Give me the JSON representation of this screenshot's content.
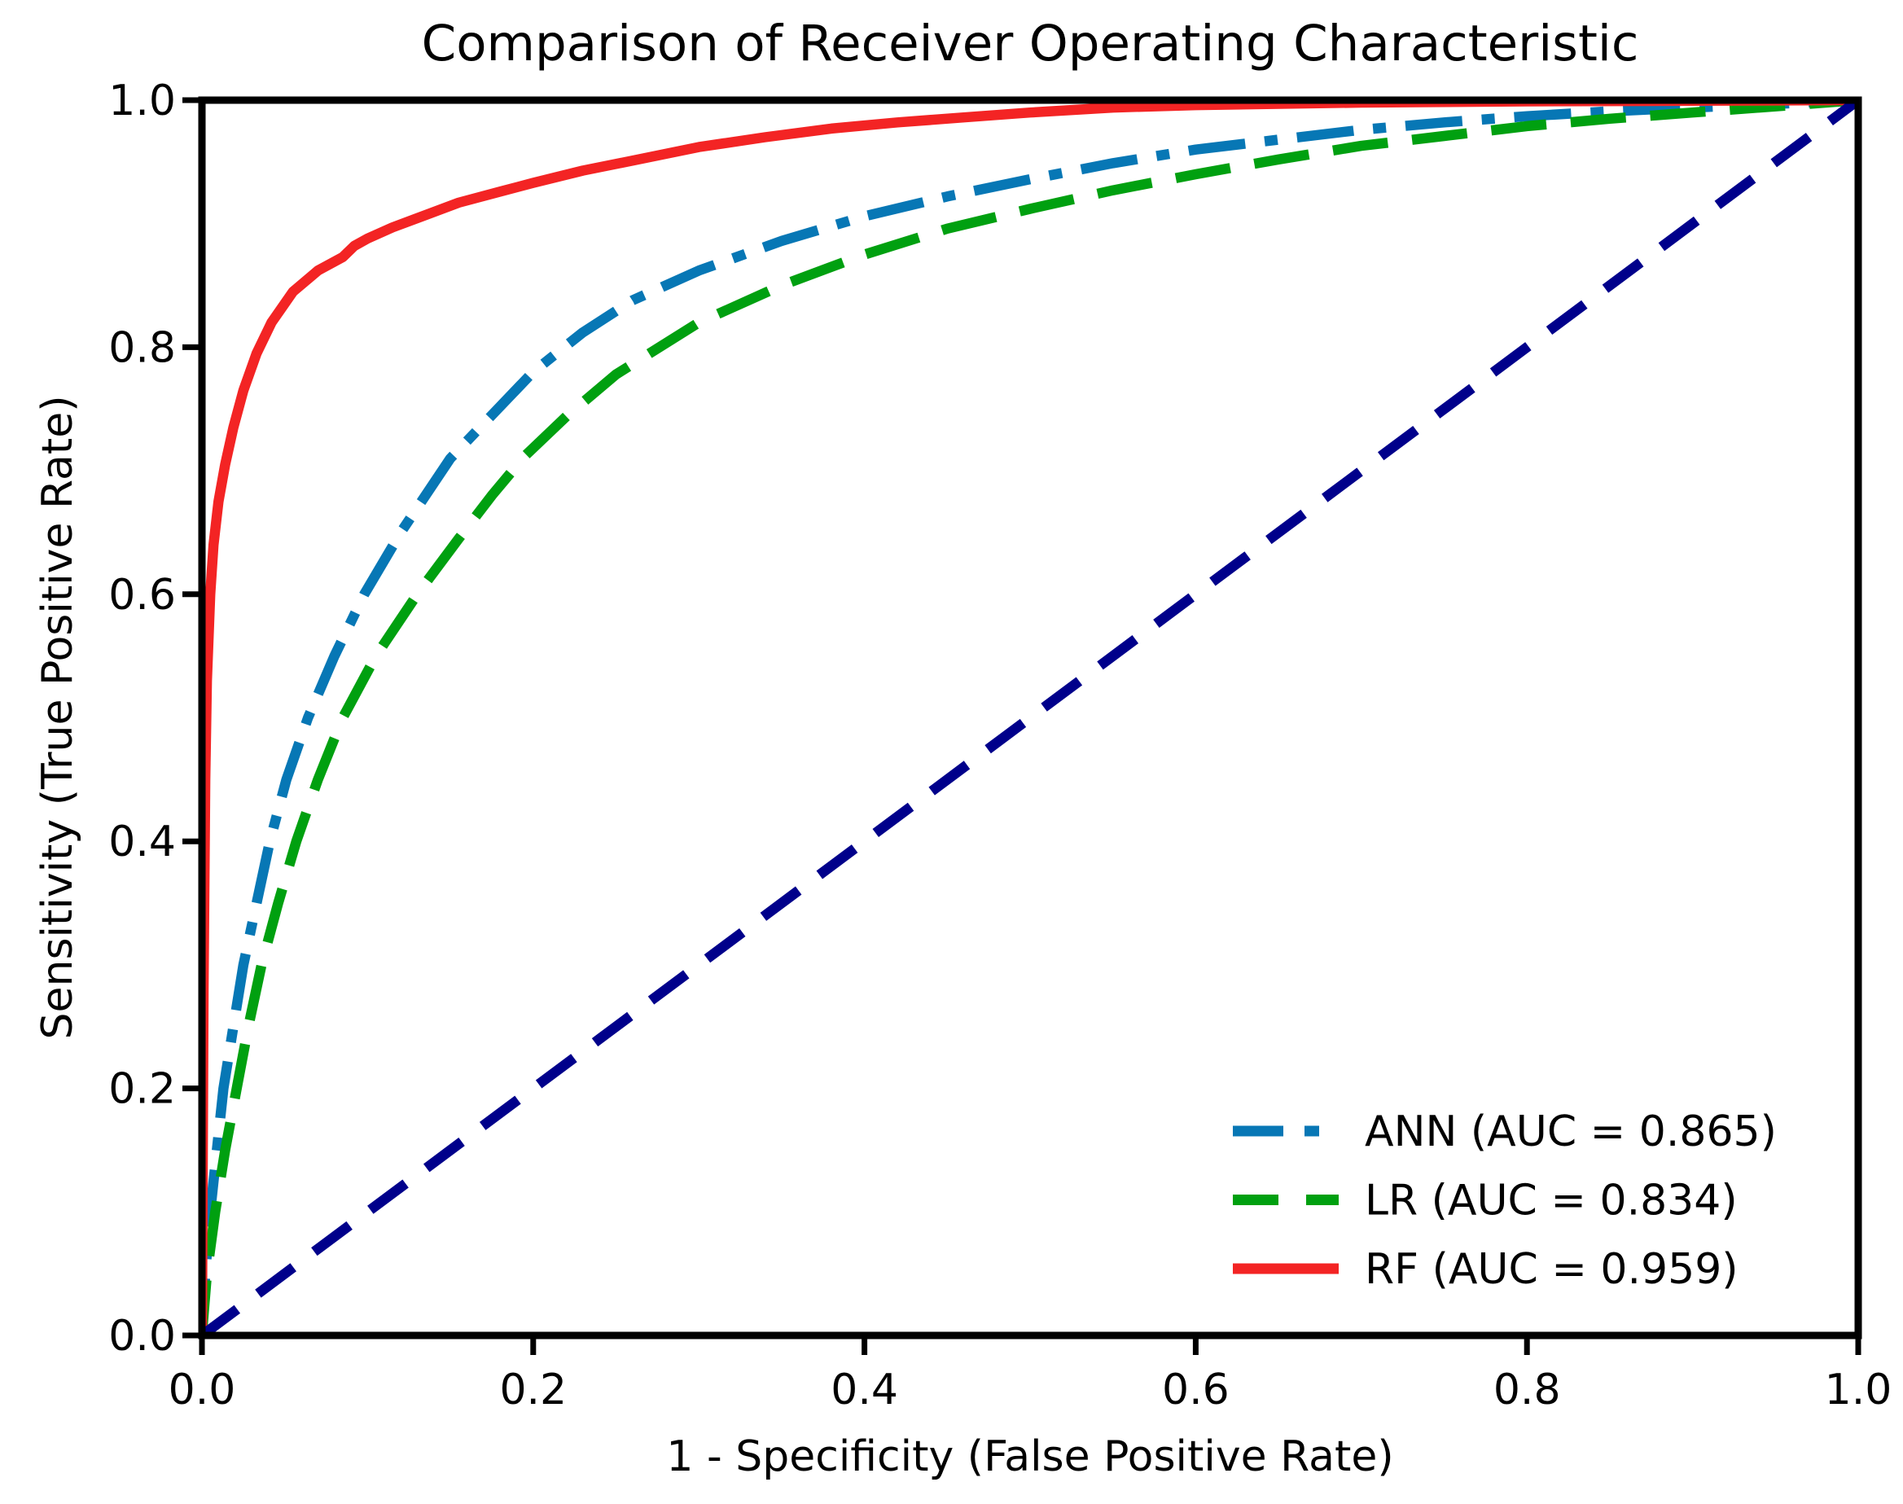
{
  "title": "Comparison of Receiver Operating Characteristic",
  "x_axis": {
    "label": "1 - Specificity (False Positive Rate)",
    "ticks": [
      "0.0",
      "0.2",
      "0.4",
      "0.6",
      "0.8",
      "1.0"
    ],
    "range": [
      0,
      1
    ]
  },
  "y_axis": {
    "label": "Sensitivity (True Positive Rate)",
    "ticks": [
      "0.0",
      "0.2",
      "0.4",
      "0.6",
      "0.8",
      "1.0"
    ],
    "range": [
      0,
      1
    ]
  },
  "legend": [
    {
      "label": "ANN (AUC = 0.865)",
      "color": "#0777B5",
      "style": "dashdot"
    },
    {
      "label": "LR (AUC = 0.834)",
      "color": "#00A010",
      "style": "dashed"
    },
    {
      "label": "RF (AUC = 0.959)",
      "color": "#F32424",
      "style": "solid"
    }
  ],
  "colors": {
    "frame": "#000000",
    "background": "#ffffff",
    "reference_line": "#00008B"
  },
  "chart_data": {
    "type": "line",
    "title": "Comparison of Receiver Operating Characteristic",
    "xlabel": "1 - Specificity (False Positive Rate)",
    "ylabel": "Sensitivity (True Positive Rate)",
    "xlim": [
      0,
      1
    ],
    "ylim": [
      0,
      1
    ],
    "grid": false,
    "legend_position": "lower right",
    "series": [
      {
        "id": "ann",
        "name": "ANN (AUC = 0.865)",
        "auc": 0.865,
        "color": "#0777B5",
        "dash": "dashdot",
        "points": [
          [
            0,
            0
          ],
          [
            0.002,
            0.05
          ],
          [
            0.005,
            0.1
          ],
          [
            0.009,
            0.15
          ],
          [
            0.013,
            0.2
          ],
          [
            0.019,
            0.25
          ],
          [
            0.025,
            0.3
          ],
          [
            0.033,
            0.35
          ],
          [
            0.041,
            0.4
          ],
          [
            0.051,
            0.45
          ],
          [
            0.064,
            0.5
          ],
          [
            0.08,
            0.55
          ],
          [
            0.098,
            0.6
          ],
          [
            0.12,
            0.65
          ],
          [
            0.15,
            0.71
          ],
          [
            0.175,
            0.745
          ],
          [
            0.2,
            0.78
          ],
          [
            0.23,
            0.812
          ],
          [
            0.26,
            0.838
          ],
          [
            0.3,
            0.862
          ],
          [
            0.35,
            0.886
          ],
          [
            0.4,
            0.906
          ],
          [
            0.45,
            0.922
          ],
          [
            0.5,
            0.936
          ],
          [
            0.55,
            0.949
          ],
          [
            0.6,
            0.96
          ],
          [
            0.65,
            0.968
          ],
          [
            0.7,
            0.976
          ],
          [
            0.75,
            0.982
          ],
          [
            0.8,
            0.987
          ],
          [
            0.85,
            0.991
          ],
          [
            0.9,
            0.994
          ],
          [
            0.95,
            0.997
          ],
          [
            1,
            1
          ]
        ]
      },
      {
        "id": "lr",
        "name": "LR (AUC = 0.834)",
        "auc": 0.834,
        "color": "#00A010",
        "dash": "dashed",
        "points": [
          [
            0,
            0
          ],
          [
            0.003,
            0.05
          ],
          [
            0.008,
            0.1
          ],
          [
            0.014,
            0.15
          ],
          [
            0.021,
            0.2
          ],
          [
            0.028,
            0.25
          ],
          [
            0.036,
            0.3
          ],
          [
            0.046,
            0.35
          ],
          [
            0.057,
            0.4
          ],
          [
            0.07,
            0.45
          ],
          [
            0.085,
            0.5
          ],
          [
            0.105,
            0.55
          ],
          [
            0.13,
            0.6
          ],
          [
            0.155,
            0.645
          ],
          [
            0.175,
            0.68
          ],
          [
            0.195,
            0.712
          ],
          [
            0.22,
            0.744
          ],
          [
            0.25,
            0.778
          ],
          [
            0.3,
            0.82
          ],
          [
            0.35,
            0.85
          ],
          [
            0.4,
            0.875
          ],
          [
            0.45,
            0.896
          ],
          [
            0.5,
            0.912
          ],
          [
            0.55,
            0.927
          ],
          [
            0.6,
            0.94
          ],
          [
            0.65,
            0.952
          ],
          [
            0.7,
            0.963
          ],
          [
            0.75,
            0.971
          ],
          [
            0.8,
            0.979
          ],
          [
            0.85,
            0.985
          ],
          [
            0.9,
            0.99
          ],
          [
            0.95,
            0.995
          ],
          [
            1,
            1
          ]
        ]
      },
      {
        "id": "rf",
        "name": "RF (AUC = 0.959)",
        "auc": 0.959,
        "color": "#F32424",
        "dash": "solid",
        "points": [
          [
            0,
            0
          ],
          [
            0.001,
            0.28
          ],
          [
            0.002,
            0.45
          ],
          [
            0.003,
            0.53
          ],
          [
            0.005,
            0.6
          ],
          [
            0.007,
            0.64
          ],
          [
            0.01,
            0.675
          ],
          [
            0.014,
            0.705
          ],
          [
            0.019,
            0.735
          ],
          [
            0.025,
            0.765
          ],
          [
            0.033,
            0.795
          ],
          [
            0.042,
            0.82
          ],
          [
            0.055,
            0.845
          ],
          [
            0.07,
            0.862
          ],
          [
            0.085,
            0.873
          ],
          [
            0.092,
            0.882
          ],
          [
            0.1,
            0.888
          ],
          [
            0.115,
            0.897
          ],
          [
            0.135,
            0.907
          ],
          [
            0.155,
            0.917
          ],
          [
            0.18,
            0.926
          ],
          [
            0.2,
            0.933
          ],
          [
            0.23,
            0.943
          ],
          [
            0.26,
            0.951
          ],
          [
            0.3,
            0.962
          ],
          [
            0.34,
            0.97
          ],
          [
            0.38,
            0.977
          ],
          [
            0.42,
            0.982
          ],
          [
            0.46,
            0.986
          ],
          [
            0.5,
            0.99
          ],
          [
            0.55,
            0.994
          ],
          [
            0.6,
            0.996
          ],
          [
            0.7,
            0.998
          ],
          [
            0.8,
            0.999
          ],
          [
            0.9,
            0.9995
          ],
          [
            1,
            1
          ]
        ]
      },
      {
        "id": "reference-diagonal",
        "name": "",
        "color": "#00008B",
        "dash": "longdash",
        "points": [
          [
            0,
            0
          ],
          [
            1,
            1
          ]
        ]
      }
    ]
  }
}
